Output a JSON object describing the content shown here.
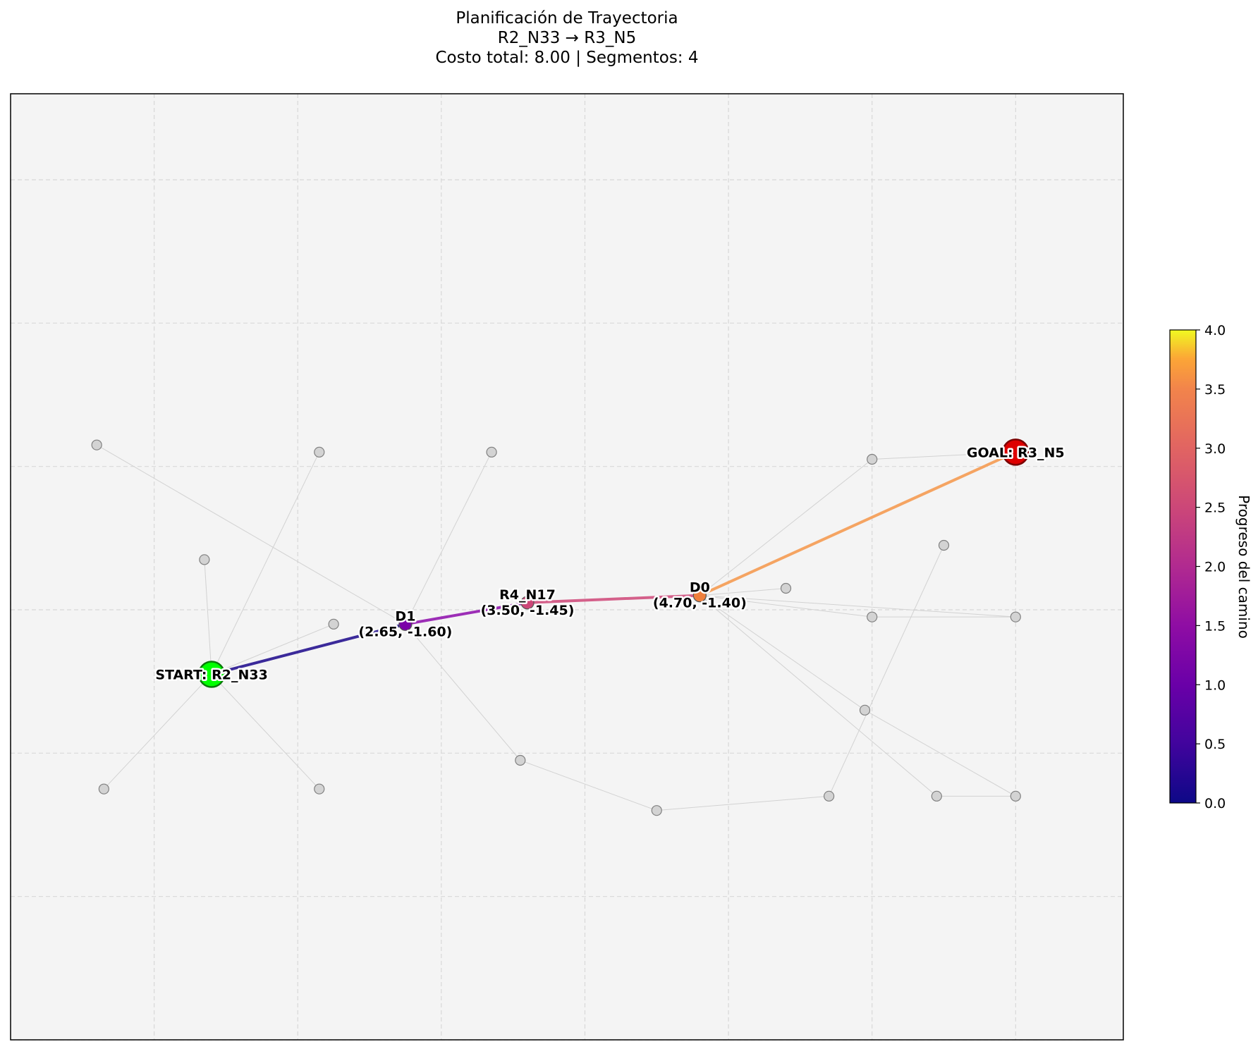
{
  "title": {
    "line1": "Planificación de Trayectoria",
    "line2": "R2_N33 → R3_N5",
    "line3": "Costo total: 8.00 | Segmentos: 4"
  },
  "colorbar": {
    "label": "Progreso del camino",
    "colormap": "plasma",
    "min": 0.0,
    "max": 4.0,
    "ticks": [
      "0.0",
      "0.5",
      "1.0",
      "1.5",
      "2.0",
      "2.5",
      "3.0",
      "3.5",
      "4.0"
    ]
  },
  "plot": {
    "background": "#f4f4f4",
    "grid": true,
    "x_range": [
      0.0,
      7.75
    ],
    "y_range": [
      -5.0,
      1.6
    ],
    "x_grid": [
      0.0,
      1.0,
      2.0,
      3.0,
      4.0,
      5.0,
      6.0,
      7.0
    ],
    "y_grid": [
      1.0,
      0.0,
      -1.0,
      -2.0,
      -3.0,
      -4.0,
      -5.0
    ]
  },
  "path": {
    "nodes": [
      {
        "id": "R2_N33",
        "x": 1.4,
        "y": -2.45,
        "label": "START: R2_N33",
        "role": "start",
        "color": "#00ff00"
      },
      {
        "id": "D1",
        "x": 2.75,
        "y": -2.1,
        "label": "D1",
        "coord": "(2.65, -1.60)",
        "role": "waypoint",
        "color": "#7b02a8"
      },
      {
        "id": "R4_N17",
        "x": 3.6,
        "y": -1.95,
        "label": "R4_N17",
        "coord": "(3.50, -1.45)",
        "role": "waypoint",
        "color": "#cc4778"
      },
      {
        "id": "D0",
        "x": 4.8,
        "y": -1.9,
        "label": "D0",
        "coord": "(4.70, -1.40)",
        "role": "waypoint",
        "color": "#f0803c"
      },
      {
        "id": "R3_N5",
        "x": 7.0,
        "y": -0.9,
        "label": "GOAL: R3_N5",
        "role": "goal",
        "color": "#dd0000"
      }
    ],
    "segment_colors": [
      "#3b2a9a",
      "#9c2eb6",
      "#d4608a",
      "#f5a462"
    ]
  },
  "graph": {
    "nodes": [
      {
        "x": 0.6,
        "y": -0.85
      },
      {
        "x": 2.15,
        "y": -0.9
      },
      {
        "x": 3.35,
        "y": -0.9
      },
      {
        "x": 1.35,
        "y": -1.65
      },
      {
        "x": 2.25,
        "y": -2.1
      },
      {
        "x": 0.65,
        "y": -3.25
      },
      {
        "x": 2.15,
        "y": -3.25
      },
      {
        "x": 3.55,
        "y": -3.05
      },
      {
        "x": 4.5,
        "y": -3.4
      },
      {
        "x": 5.7,
        "y": -3.3
      },
      {
        "x": 6.45,
        "y": -3.3
      },
      {
        "x": 7.0,
        "y": -3.3
      },
      {
        "x": 6.0,
        "y": -0.95
      },
      {
        "x": 6.5,
        "y": -1.55
      },
      {
        "x": 5.4,
        "y": -1.85
      },
      {
        "x": 6.0,
        "y": -2.05
      },
      {
        "x": 7.0,
        "y": -2.05
      },
      {
        "x": 5.95,
        "y": -2.7
      }
    ],
    "edges": [
      [
        0.6,
        -0.85,
        2.75,
        -2.1
      ],
      [
        2.75,
        -2.1,
        3.55,
        -3.05
      ],
      [
        3.55,
        -3.05,
        4.5,
        -3.4
      ],
      [
        4.5,
        -3.4,
        5.7,
        -3.3
      ],
      [
        5.7,
        -3.3,
        6.5,
        -1.55
      ],
      [
        1.4,
        -2.45,
        2.15,
        -0.9
      ],
      [
        1.4,
        -2.45,
        1.35,
        -1.65
      ],
      [
        1.4,
        -2.45,
        2.25,
        -2.1
      ],
      [
        1.4,
        -2.45,
        0.65,
        -3.25
      ],
      [
        1.4,
        -2.45,
        2.15,
        -3.25
      ],
      [
        2.75,
        -2.1,
        3.35,
        -0.9
      ],
      [
        4.8,
        -1.9,
        6.0,
        -0.95
      ],
      [
        6.0,
        -0.95,
        7.0,
        -0.9
      ],
      [
        4.8,
        -1.9,
        5.4,
        -1.85
      ],
      [
        4.8,
        -1.9,
        6.0,
        -2.05
      ],
      [
        6.0,
        -2.05,
        7.0,
        -2.05
      ],
      [
        4.8,
        -1.9,
        7.0,
        -2.05
      ],
      [
        4.8,
        -1.9,
        6.45,
        -3.3
      ],
      [
        6.45,
        -3.3,
        7.0,
        -3.3
      ],
      [
        4.8,
        -1.9,
        5.95,
        -2.7
      ],
      [
        5.95,
        -2.7,
        7.0,
        -3.3
      ]
    ]
  }
}
